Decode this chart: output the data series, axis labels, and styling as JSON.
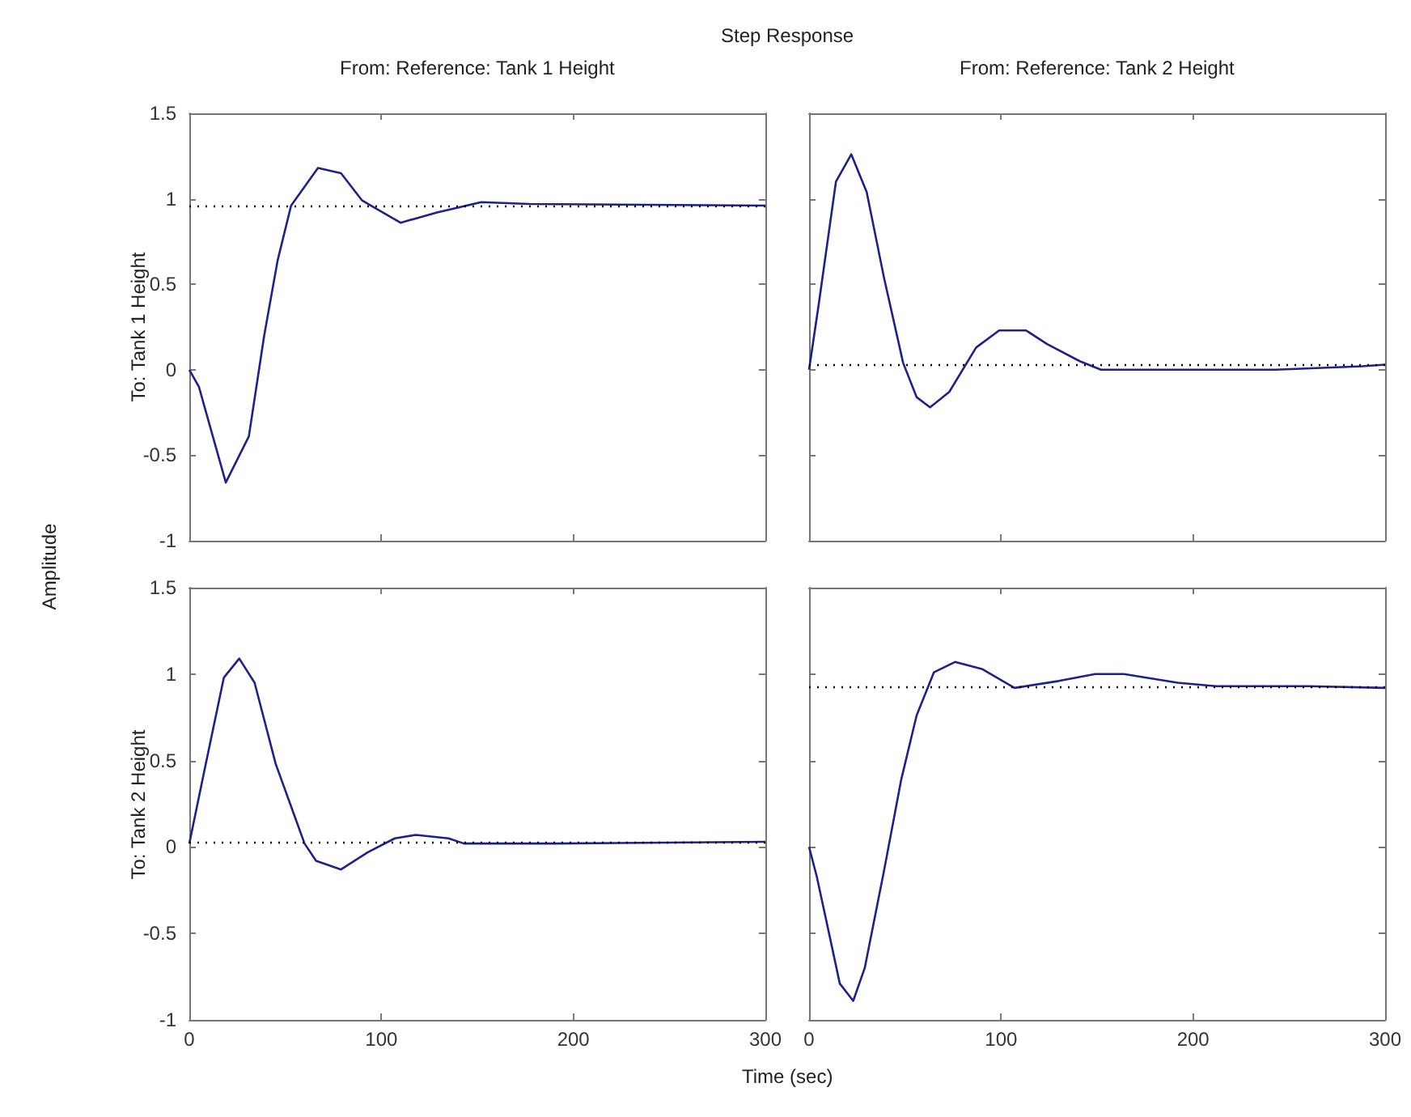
{
  "chart_data": [
    {
      "type": "line",
      "title": "Step Response",
      "subtitle": "From: Reference: Tank 1 Height",
      "ylabel": "To: Tank 1 Height",
      "annotations": [
        "Amplitude"
      ],
      "tick_labels": "y",
      "series": [
        {
          "color": "#20208a",
          "x": [
            0,
            5,
            19,
            31,
            39,
            46,
            53,
            67,
            79,
            90,
            110,
            129,
            152,
            177,
            300
          ],
          "values": [
            0,
            -0.1,
            -0.66,
            -0.39,
            0.2,
            0.64,
            0.96,
            1.18,
            1.15,
            0.99,
            0.86,
            0.92,
            0.98,
            0.97,
            0.96
          ]
        }
      ],
      "xlim": [
        0,
        300
      ],
      "xticks": [
        0,
        100,
        200,
        300
      ],
      "ylim": [
        -1,
        1.5
      ],
      "yticks": [
        -1,
        -0.5,
        0,
        0.5,
        1,
        1.5
      ],
      "ref_lines": [
        {
          "axis": "y",
          "value": 0.96,
          "color": "#000000",
          "line_style": "dotted"
        }
      ]
    },
    {
      "type": "line",
      "subtitle": "From: Reference: Tank 2 Height",
      "tick_labels": false,
      "series": [
        {
          "color": "#20208a",
          "x": [
            0,
            5,
            14,
            22,
            30,
            39,
            49,
            56,
            63,
            73,
            87,
            99,
            113,
            124,
            141,
            152,
            243,
            288,
            300
          ],
          "values": [
            0,
            0.38,
            1.1,
            1.26,
            1.04,
            0.54,
            0.04,
            -0.16,
            -0.22,
            -0.13,
            0.13,
            0.23,
            0.23,
            0.15,
            0.05,
            0,
            0,
            0.02,
            0.03
          ]
        }
      ],
      "xlim": [
        0,
        300
      ],
      "xticks": [
        0,
        100,
        200,
        300
      ],
      "ylim": [
        -1,
        1.5
      ],
      "yticks": [
        -1,
        -0.5,
        0,
        0.5,
        1,
        1.5
      ],
      "ref_lines": [
        {
          "axis": "y",
          "value": 0.03,
          "color": "#000000",
          "line_style": "dotted"
        }
      ]
    },
    {
      "type": "line",
      "ylabel": "To: Tank 2 Height",
      "xlabel": "Time (sec)",
      "series": [
        {
          "color": "#20208a",
          "x": [
            0,
            8,
            18,
            26,
            34,
            45,
            60,
            66,
            79,
            93,
            107,
            118,
            135,
            143,
            191,
            300
          ],
          "values": [
            0.02,
            0.45,
            0.98,
            1.09,
            0.95,
            0.48,
            0.02,
            -0.08,
            -0.13,
            -0.03,
            0.05,
            0.07,
            0.05,
            0.02,
            0.02,
            0.03
          ]
        }
      ],
      "xlim": [
        0,
        300
      ],
      "xticks": [
        0,
        100,
        200,
        300
      ],
      "ylim": [
        -1,
        1.5
      ],
      "yticks": [
        -1,
        -0.5,
        0,
        0.5,
        1,
        1.5
      ],
      "ref_lines": [
        {
          "axis": "y",
          "value": 0.03,
          "color": "#000000",
          "line_style": "dotted"
        }
      ]
    },
    {
      "type": "line",
      "tick_labels": "x",
      "series": [
        {
          "color": "#20208a",
          "x": [
            0,
            4,
            11,
            16,
            23,
            29,
            39,
            48,
            56,
            65,
            76,
            90,
            107,
            130,
            149,
            164,
            192,
            212,
            260,
            300
          ],
          "values": [
            0,
            -0.17,
            -0.53,
            -0.79,
            -0.89,
            -0.7,
            -0.14,
            0.39,
            0.76,
            1.01,
            1.07,
            1.03,
            0.92,
            0.96,
            1,
            1,
            0.95,
            0.93,
            0.93,
            0.92
          ]
        }
      ],
      "xlim": [
        0,
        300
      ],
      "xticks": [
        0,
        100,
        200,
        300
      ],
      "ylim": [
        -1,
        1.5
      ],
      "yticks": [
        -1,
        -0.5,
        0,
        0.5,
        1,
        1.5
      ],
      "ref_lines": [
        {
          "axis": "y",
          "value": 0.93,
          "color": "#000000",
          "line_style": "dotted"
        }
      ]
    }
  ]
}
